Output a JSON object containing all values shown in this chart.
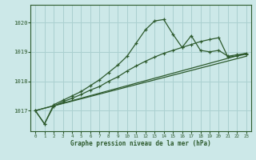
{
  "title": "Graphe pression niveau de la mer (hPa)",
  "bg_color": "#cce8e8",
  "grid_color": "#aad0d0",
  "line_color": "#2d5a2d",
  "xlim": [
    -0.5,
    23.5
  ],
  "ylim": [
    1016.3,
    1020.6
  ],
  "yticks": [
    1017,
    1018,
    1019,
    1020
  ],
  "xticks": [
    0,
    1,
    2,
    3,
    4,
    5,
    6,
    7,
    8,
    9,
    10,
    11,
    12,
    13,
    14,
    15,
    16,
    17,
    18,
    19,
    20,
    21,
    22,
    23
  ],
  "series": {
    "main": [
      [
        0,
        1017.0
      ],
      [
        1,
        1016.55
      ],
      [
        2,
        1017.2
      ],
      [
        3,
        1017.35
      ],
      [
        4,
        1017.5
      ],
      [
        5,
        1017.65
      ],
      [
        6,
        1017.85
      ],
      [
        7,
        1018.05
      ],
      [
        8,
        1018.3
      ],
      [
        9,
        1018.55
      ],
      [
        10,
        1018.85
      ],
      [
        11,
        1019.3
      ],
      [
        12,
        1019.75
      ],
      [
        13,
        1020.05
      ],
      [
        14,
        1020.1
      ],
      [
        15,
        1019.6
      ],
      [
        16,
        1019.15
      ],
      [
        17,
        1019.55
      ],
      [
        18,
        1019.05
      ],
      [
        19,
        1019.0
      ],
      [
        20,
        1019.05
      ],
      [
        21,
        1018.85
      ],
      [
        22,
        1018.9
      ],
      [
        23,
        1018.95
      ]
    ],
    "line2": [
      [
        0,
        1017.0
      ],
      [
        1,
        1016.55
      ],
      [
        2,
        1017.15
      ],
      [
        3,
        1017.3
      ],
      [
        4,
        1017.42
      ],
      [
        5,
        1017.55
      ],
      [
        6,
        1017.7
      ],
      [
        7,
        1017.82
      ],
      [
        8,
        1018.0
      ],
      [
        9,
        1018.15
      ],
      [
        10,
        1018.35
      ],
      [
        11,
        1018.52
      ],
      [
        12,
        1018.68
      ],
      [
        13,
        1018.82
      ],
      [
        14,
        1018.95
      ],
      [
        15,
        1019.05
      ],
      [
        16,
        1019.15
      ],
      [
        17,
        1019.25
      ],
      [
        18,
        1019.35
      ],
      [
        19,
        1019.42
      ],
      [
        20,
        1019.48
      ],
      [
        21,
        1018.82
      ],
      [
        22,
        1018.86
      ],
      [
        23,
        1018.92
      ]
    ],
    "line3": [
      [
        0,
        1017.0
      ],
      [
        23,
        1018.95
      ]
    ],
    "line4": [
      [
        0,
        1017.0
      ],
      [
        23,
        1018.85
      ]
    ]
  }
}
